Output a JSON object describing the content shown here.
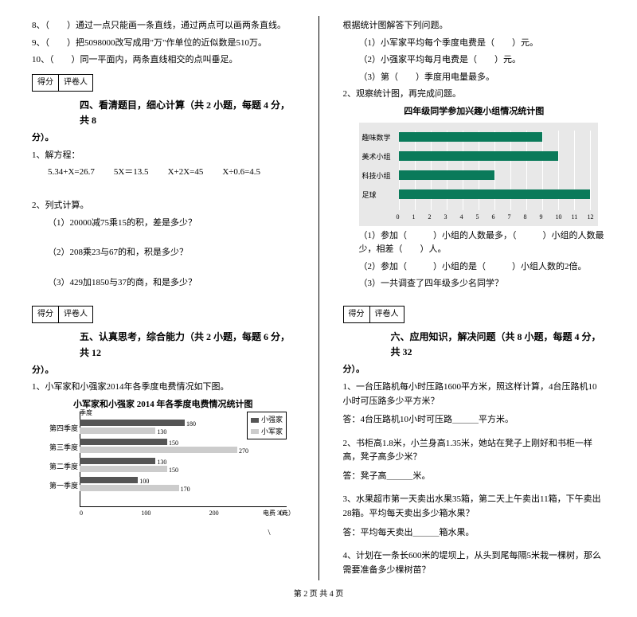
{
  "left": {
    "judg": [
      "8、（　　）通过一点只能画一条直线，通过两点可以画两条直线。",
      "9、（　　）把5098000改写成用\"万\"作单位的近似数是510万。",
      "10、（　　）同一平面内，两条直线相交的点叫垂足。"
    ],
    "score_labels": [
      "得分",
      "评卷人"
    ],
    "sec4_title": "四、看清题目，细心计算（共 2 小题，每题 4 分，共 8",
    "fen": "分）。",
    "q1": "1、解方程：",
    "eqs": [
      "5.34+X=26.7",
      "5X＝13.5",
      "X+2X=45",
      "X÷0.6=4.5"
    ],
    "q2": "2、列式计算。",
    "q2a": "（1）20000减75乘15的积，差是多少？",
    "q2b": "（2）208乘23与67的和，积是多少？",
    "q2c": "（3）429加1850与37的商，和是多少？",
    "sec5_title": "五、认真思考，综合能力（共 2 小题，每题 6 分，共 12",
    "q5_1": "1、小军家和小强家2014年各季度电费情况如下图。",
    "chart1": {
      "title": "小军家和小强家 2014 年各季度电费情况统计图",
      "ylabel": "季度",
      "xlabel": "电费（元）",
      "legend": [
        "小强家",
        "小军家"
      ],
      "legend_colors": [
        "#555555",
        "#cccccc"
      ],
      "categories": [
        "第四季度",
        "第三季度",
        "第二季度",
        "第一季度"
      ],
      "series_a": [
        180,
        150,
        130,
        100
      ],
      "series_b": [
        130,
        270,
        150,
        170
      ],
      "xticks": [
        "0",
        "100",
        "200",
        "300"
      ],
      "xmax": 300,
      "bg": "#ffffff"
    },
    "slash": "\\"
  },
  "right": {
    "intro": "根据统计图解答下列问题。",
    "r1": "（1）小军家平均每个季度电费是（　　）元。",
    "r2": "（2）小强家平均每月电费是（　　）元。",
    "r3": "（3）第（　　）季度用电量最多。",
    "q2": "2、观察统计图，再完成问题。",
    "chart2": {
      "title": "四年级同学参加兴趣小组情况统计图",
      "categories": [
        "趣味数学",
        "美术小组",
        "科技小组",
        "足球"
      ],
      "values": [
        9,
        10,
        6,
        12
      ],
      "xmax": 12,
      "xticks": [
        "0",
        "1",
        "2",
        "3",
        "4",
        "5",
        "6",
        "7",
        "8",
        "9",
        "10",
        "11",
        "12"
      ],
      "bar_color": "#0a7a5a",
      "bg": "#e8e8e8",
      "grid": "#ffffff"
    },
    "c1": "（1）参加（　　　）小组的人数最多，（　　　）小组的人数最少，相差（　　）人。",
    "c2": "（2）参加（　　　）小组的是（　　　）小组人数的2倍。",
    "c3": "（3）一共调查了四年级多少名同学？",
    "score_labels": [
      "得分",
      "评卷人"
    ],
    "sec6_title": "六、应用知识，解决问题（共 8 小题，每题 4 分，共 32",
    "fen": "分）。",
    "a1": "1、一台压路机每小时压路1600平方米，照这样计算，4台压路机10小时可压路多少平方米？",
    "a1ans": "答：4台压路机10小时可压路＿＿＿平方米。",
    "a2": "2、书柜高1.8米，小兰身高1.35米，她站在凳子上刚好和书柜一样高，凳子高多少米？",
    "a2ans": "答：凳子高＿＿＿米。",
    "a3": "3、水果超市第一天卖出水果35箱，第二天上午卖出11箱，下午卖出28箱。平均每天卖出多少箱水果？",
    "a3ans": "答：平均每天卖出＿＿＿箱水果。",
    "a4": "4、计划在一条长600米的堤坝上，从头到尾每隔5米栽一棵树，那么需要准备多少棵树苗？"
  },
  "footer": "第 2 页 共 4 页"
}
